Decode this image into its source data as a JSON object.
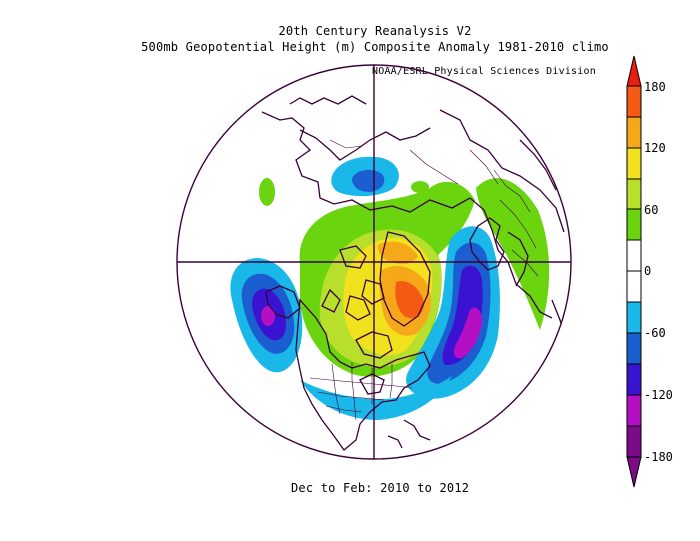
{
  "title": "20th Century Reanalysis V2",
  "subtitle": "500mb Geopotential Height (m) Composite Anomaly 1981-2010 climo",
  "credit": "NOAA/ESRL Physical Sciences Division",
  "period": "Dec to Feb: 2010 to 2012",
  "projection": "north polar stereographic",
  "colorbar": {
    "min": -180,
    "max": 180,
    "step": 30,
    "tick_labels": [
      "180",
      "120",
      "60",
      "0",
      "-60",
      "-120",
      "-180"
    ],
    "tick_values": [
      180,
      120,
      60,
      0,
      -60,
      -120,
      -180
    ],
    "colors": [
      "#7d0a87",
      "#b50fc3",
      "#3a12d2",
      "#1a5ecf",
      "#19b8e8",
      "#ffffff",
      "#ffffff",
      "#6ad40e",
      "#b7df2b",
      "#f2e11d",
      "#f6a81b",
      "#f45a14",
      "#e81d10"
    ]
  }
}
